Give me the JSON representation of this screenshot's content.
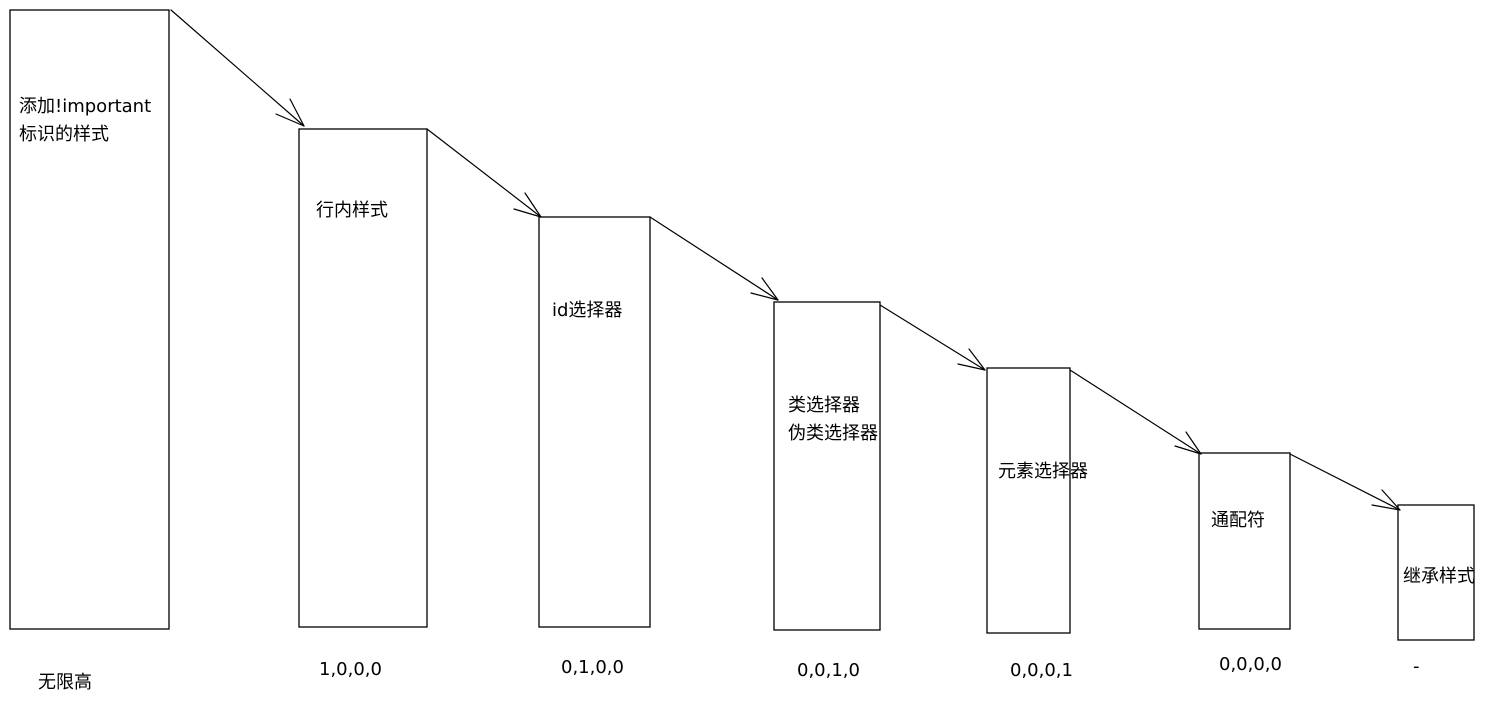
{
  "diagram": {
    "bars": [
      {
        "lines": [
          "添加!important",
          "标识的样式"
        ],
        "specificity": "无限高"
      },
      {
        "lines": [
          "行内样式"
        ],
        "specificity": "1,0,0,0"
      },
      {
        "lines": [
          "id选择器"
        ],
        "specificity": "0,1,0,0"
      },
      {
        "lines": [
          "类选择器",
          "伪类选择器"
        ],
        "specificity": "0,0,1,0"
      },
      {
        "lines": [
          "元素选择器"
        ],
        "specificity": "0,0,0,1"
      },
      {
        "lines": [
          "通配符"
        ],
        "specificity": "0,0,0,0"
      },
      {
        "lines": [
          "继承样式"
        ],
        "specificity": "-"
      }
    ],
    "stroke_color": "#000000",
    "fill_color": "#ffffff"
  }
}
